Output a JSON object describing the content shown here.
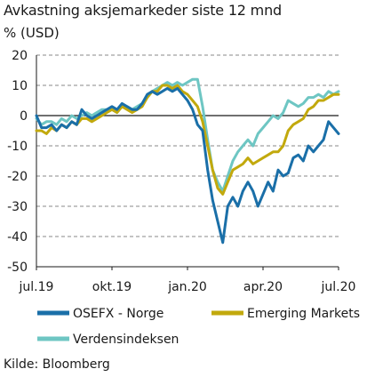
{
  "title": "Avkastning aksjemarkeder siste 12 mnd",
  "unit_label": "% (USD)",
  "source": "Kilde: Bloomberg",
  "chart_data": {
    "type": "line",
    "title": "Avkastning aksjemarkeder siste 12 mnd",
    "ylabel": "% (USD)",
    "xlabel": "",
    "ylim": [
      -50,
      20
    ],
    "yticks": [
      20,
      10,
      0,
      -10,
      -20,
      -30,
      -40,
      -50
    ],
    "ytick_labels": [
      "20",
      "10",
      "0",
      "-10",
      "-20",
      "-30",
      "-40",
      "-50"
    ],
    "xlim": [
      0,
      12
    ],
    "xticks": [
      0,
      3,
      6,
      9,
      12
    ],
    "xtick_labels": [
      "jul.19",
      "okt.19",
      "jan.20",
      "apr.20",
      "jul.20"
    ],
    "grid": "horizontal dashed",
    "legend": "bottom",
    "series": [
      {
        "name": "OSEFX - Norge",
        "color": "#1a6fa8",
        "x": [
          0,
          0.2,
          0.4,
          0.6,
          0.8,
          1.0,
          1.2,
          1.4,
          1.6,
          1.8,
          2.0,
          2.2,
          2.4,
          2.6,
          2.8,
          3.0,
          3.2,
          3.4,
          3.6,
          3.8,
          4.0,
          4.2,
          4.4,
          4.6,
          4.8,
          5.0,
          5.2,
          5.4,
          5.6,
          5.8,
          6.0,
          6.2,
          6.4,
          6.6,
          6.8,
          7.0,
          7.2,
          7.4,
          7.6,
          7.8,
          8.0,
          8.2,
          8.4,
          8.6,
          8.8,
          9.0,
          9.2,
          9.4,
          9.6,
          9.8,
          10.0,
          10.2,
          10.4,
          10.6,
          10.8,
          11.0,
          11.2,
          11.4,
          11.6,
          11.8,
          12.0
        ],
        "y": [
          0,
          -4,
          -4,
          -3,
          -5,
          -3,
          -4,
          -2,
          -3,
          2,
          0,
          -1,
          0,
          1,
          2,
          3,
          2,
          4,
          3,
          2,
          2,
          4,
          7,
          8,
          7,
          8,
          9,
          8,
          9,
          7,
          5,
          2,
          -3,
          -5,
          -18,
          -28,
          -35,
          -42,
          -30,
          -27,
          -30,
          -25,
          -22,
          -25,
          -30,
          -26,
          -22,
          -25,
          -18,
          -20,
          -19,
          -14,
          -13,
          -15,
          -10,
          -12,
          -10,
          -8,
          -2,
          -4,
          -6
        ]
      },
      {
        "name": "Emerging Markets",
        "color": "#c2a90d",
        "x": [
          0,
          0.2,
          0.4,
          0.6,
          0.8,
          1.0,
          1.2,
          1.4,
          1.6,
          1.8,
          2.0,
          2.2,
          2.4,
          2.6,
          2.8,
          3.0,
          3.2,
          3.4,
          3.6,
          3.8,
          4.0,
          4.2,
          4.4,
          4.6,
          4.8,
          5.0,
          5.2,
          5.4,
          5.6,
          5.8,
          6.0,
          6.2,
          6.4,
          6.6,
          6.8,
          7.0,
          7.2,
          7.4,
          7.6,
          7.8,
          8.0,
          8.2,
          8.4,
          8.6,
          8.8,
          9.0,
          9.2,
          9.4,
          9.6,
          9.8,
          10.0,
          10.2,
          10.4,
          10.6,
          10.8,
          11.0,
          11.2,
          11.4,
          11.6,
          11.8,
          12.0
        ],
        "y": [
          -5,
          -5,
          -6,
          -4,
          -5,
          -3,
          -4,
          -2,
          -3,
          -1,
          -1,
          -2,
          -1,
          0,
          1,
          2,
          1,
          3,
          2,
          1,
          2,
          3,
          6,
          8,
          8,
          10,
          10,
          9,
          10,
          8,
          7,
          5,
          3,
          -2,
          -10,
          -18,
          -24,
          -26,
          -22,
          -18,
          -17,
          -16,
          -14,
          -16,
          -15,
          -14,
          -13,
          -12,
          -12,
          -10,
          -5,
          -3,
          -2,
          -1,
          2,
          3,
          5,
          5,
          6,
          7,
          7
        ]
      },
      {
        "name": "Verdensindeksen",
        "color": "#6ec6c3",
        "x": [
          0,
          0.2,
          0.4,
          0.6,
          0.8,
          1.0,
          1.2,
          1.4,
          1.6,
          1.8,
          2.0,
          2.2,
          2.4,
          2.6,
          2.8,
          3.0,
          3.2,
          3.4,
          3.6,
          3.8,
          4.0,
          4.2,
          4.4,
          4.6,
          4.8,
          5.0,
          5.2,
          5.4,
          5.6,
          5.8,
          6.0,
          6.2,
          6.4,
          6.6,
          6.8,
          7.0,
          7.2,
          7.4,
          7.6,
          7.8,
          8.0,
          8.2,
          8.4,
          8.6,
          8.8,
          9.0,
          9.2,
          9.4,
          9.6,
          9.8,
          10.0,
          10.2,
          10.4,
          10.6,
          10.8,
          11.0,
          11.2,
          11.4,
          11.6,
          11.8,
          12.0
        ],
        "y": [
          -1,
          -3,
          -2,
          -2,
          -3,
          -1,
          -2,
          0,
          -1,
          0,
          1,
          0,
          1,
          2,
          2,
          2,
          1,
          3,
          3,
          2,
          3,
          4,
          6,
          8,
          9,
          10,
          11,
          10,
          11,
          10,
          11,
          12,
          12,
          3,
          -8,
          -18,
          -22,
          -25,
          -20,
          -15,
          -12,
          -10,
          -8,
          -10,
          -6,
          -4,
          -2,
          0,
          -1,
          1,
          5,
          4,
          3,
          4,
          6,
          6,
          7,
          6,
          8,
          7,
          8
        ]
      }
    ]
  }
}
